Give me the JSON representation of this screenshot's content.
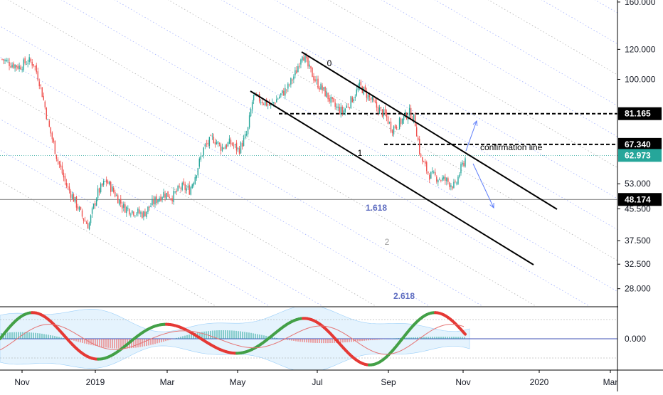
{
  "chart_data": {
    "type": "candlestick",
    "title": "",
    "y_axis": {
      "scale": "log",
      "tick_labels": [
        "160.000",
        "120.000",
        "100.000",
        "53.000",
        "45.500",
        "37.500",
        "32.500",
        "28.000"
      ],
      "ticks": [
        160,
        120,
        100,
        53,
        45.5,
        37.5,
        32.5,
        28
      ],
      "range": [
        25.2,
        162
      ]
    },
    "x_axis": {
      "tick_labels": [
        "Nov",
        "2019",
        "Mar",
        "May",
        "Jul",
        "Sep",
        "Nov",
        "2020",
        "Mar"
      ]
    },
    "price_badges": [
      {
        "label": "81.165",
        "value": 81.165,
        "style": "dark"
      },
      {
        "label": "67.340",
        "value": 67.34,
        "style": "dark"
      },
      {
        "label": "62.973",
        "value": 62.973,
        "style": "teal"
      },
      {
        "label": "48.174",
        "value": 48.174,
        "style": "dark"
      }
    ],
    "annotations": [
      {
        "text": "0",
        "kind": "fib-level"
      },
      {
        "text": "1",
        "kind": "fib-level"
      },
      {
        "text": "1.618",
        "kind": "fib-level"
      },
      {
        "text": "2",
        "kind": "fib-level"
      },
      {
        "text": "2.618",
        "kind": "fib-level"
      },
      {
        "text": "confirmation line",
        "kind": "note"
      }
    ],
    "price_keypoints": [
      {
        "t": 0,
        "p": 113
      },
      {
        "t": 6,
        "p": 110
      },
      {
        "t": 12,
        "p": 108
      },
      {
        "t": 18,
        "p": 112
      },
      {
        "t": 22,
        "p": 110
      },
      {
        "t": 26,
        "p": 98
      },
      {
        "t": 32,
        "p": 76
      },
      {
        "t": 38,
        "p": 62
      },
      {
        "t": 44,
        "p": 53
      },
      {
        "t": 50,
        "p": 48
      },
      {
        "t": 56,
        "p": 43
      },
      {
        "t": 60,
        "p": 41
      },
      {
        "t": 66,
        "p": 50
      },
      {
        "t": 72,
        "p": 54
      },
      {
        "t": 78,
        "p": 50
      },
      {
        "t": 84,
        "p": 46
      },
      {
        "t": 90,
        "p": 45
      },
      {
        "t": 98,
        "p": 44
      },
      {
        "t": 104,
        "p": 47
      },
      {
        "t": 112,
        "p": 50
      },
      {
        "t": 118,
        "p": 49
      },
      {
        "t": 124,
        "p": 52
      },
      {
        "t": 130,
        "p": 51
      },
      {
        "t": 134,
        "p": 56
      },
      {
        "t": 140,
        "p": 66
      },
      {
        "t": 146,
        "p": 70
      },
      {
        "t": 152,
        "p": 66
      },
      {
        "t": 158,
        "p": 68
      },
      {
        "t": 164,
        "p": 65
      },
      {
        "t": 170,
        "p": 72
      },
      {
        "t": 174,
        "p": 90
      },
      {
        "t": 180,
        "p": 88
      },
      {
        "t": 186,
        "p": 85
      },
      {
        "t": 192,
        "p": 90
      },
      {
        "t": 198,
        "p": 95
      },
      {
        "t": 204,
        "p": 105
      },
      {
        "t": 208,
        "p": 118
      },
      {
        "t": 212,
        "p": 108
      },
      {
        "t": 218,
        "p": 98
      },
      {
        "t": 224,
        "p": 92
      },
      {
        "t": 230,
        "p": 85
      },
      {
        "t": 236,
        "p": 82
      },
      {
        "t": 242,
        "p": 88
      },
      {
        "t": 248,
        "p": 96
      },
      {
        "t": 254,
        "p": 90
      },
      {
        "t": 260,
        "p": 84
      },
      {
        "t": 266,
        "p": 80
      },
      {
        "t": 270,
        "p": 74
      },
      {
        "t": 276,
        "p": 77
      },
      {
        "t": 282,
        "p": 82
      },
      {
        "t": 286,
        "p": 78
      },
      {
        "t": 290,
        "p": 62
      },
      {
        "t": 296,
        "p": 56
      },
      {
        "t": 302,
        "p": 55
      },
      {
        "t": 308,
        "p": 54
      },
      {
        "t": 314,
        "p": 52
      },
      {
        "t": 318,
        "p": 58
      },
      {
        "t": 322,
        "p": 63
      }
    ],
    "indicator": {
      "type": "oscillator",
      "tick_labels": [
        "0.000"
      ],
      "ticks": [
        0
      ]
    },
    "grid": false,
    "legend": "none"
  }
}
